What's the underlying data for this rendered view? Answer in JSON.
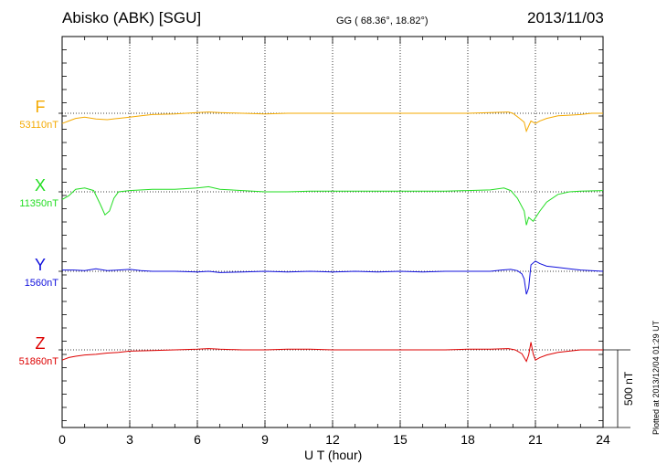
{
  "header": {
    "station": "Abisko (ABK)  [SGU]",
    "coordinates": "GG ( 68.36°,  18.82°)",
    "date": "2013/11/03"
  },
  "footer": {
    "plotted": "Plotted at 2013/12/04 01:29 UT"
  },
  "chart_data": {
    "type": "line",
    "title": "Abisko (ABK)  [SGU]",
    "xlabel": "U T (hour)",
    "xlim": [
      0,
      24
    ],
    "x_ticks": [
      "0",
      "3",
      "6",
      "9",
      "12",
      "15",
      "18",
      "21",
      "24"
    ],
    "grid": "dotted vertical at every 3 hours",
    "scale_bar": "500 nT",
    "series": [
      {
        "name": "F",
        "baseline": "53110nT",
        "color": "#f4a900",
        "x": [
          0,
          0.3,
          0.6,
          1.0,
          1.5,
          2.0,
          2.5,
          3.0,
          3.5,
          4.0,
          5.0,
          6.0,
          6.5,
          7.0,
          8.0,
          9.0,
          10.0,
          11.0,
          12.0,
          13.0,
          14.0,
          15.0,
          16.0,
          17.0,
          18.0,
          19.0,
          19.8,
          20.0,
          20.3,
          20.5,
          20.6,
          20.7,
          20.8,
          21.0,
          21.2,
          21.5,
          22.0,
          22.5,
          23.0,
          23.5,
          24.0
        ],
        "y": [
          -80,
          -60,
          -40,
          -30,
          -45,
          -50,
          -40,
          -30,
          -20,
          -10,
          -5,
          5,
          10,
          5,
          0,
          -5,
          0,
          0,
          0,
          0,
          0,
          0,
          0,
          0,
          0,
          5,
          10,
          0,
          -40,
          -70,
          -140,
          -100,
          -60,
          -80,
          -60,
          -40,
          -20,
          -15,
          -10,
          0,
          0
        ]
      },
      {
        "name": "X",
        "baseline": "11350nT",
        "color": "#22dd22",
        "x": [
          0,
          0.3,
          0.6,
          1.0,
          1.4,
          1.7,
          1.9,
          2.1,
          2.3,
          2.5,
          3.0,
          4.0,
          5.0,
          6.0,
          6.5,
          7.0,
          8.0,
          9.0,
          10.0,
          11.0,
          12.0,
          13.0,
          14.0,
          15.0,
          16.0,
          17.0,
          18.0,
          19.0,
          19.6,
          19.9,
          20.2,
          20.5,
          20.6,
          20.7,
          20.9,
          21.2,
          21.5,
          22.0,
          22.5,
          23.0,
          24.0
        ],
        "y": [
          -60,
          -30,
          20,
          30,
          10,
          -100,
          -180,
          -150,
          -50,
          0,
          10,
          20,
          20,
          30,
          40,
          20,
          10,
          0,
          0,
          5,
          5,
          5,
          5,
          5,
          5,
          5,
          10,
          15,
          30,
          10,
          -50,
          -150,
          -260,
          -200,
          -230,
          -150,
          -80,
          -20,
          0,
          5,
          10
        ]
      },
      {
        "name": "Y",
        "baseline": "1560nT",
        "color": "#1010dd",
        "x": [
          0,
          0.5,
          1.0,
          1.5,
          2.0,
          2.5,
          3.0,
          3.5,
          4.0,
          5.0,
          6.0,
          6.5,
          7.0,
          8.0,
          9.0,
          10.0,
          11.0,
          12.0,
          13.0,
          14.0,
          15.0,
          16.0,
          17.0,
          18.0,
          19.0,
          19.5,
          19.9,
          20.2,
          20.4,
          20.5,
          20.6,
          20.7,
          20.8,
          21.0,
          21.2,
          21.5,
          22.0,
          22.5,
          23.0,
          24.0
        ],
        "y": [
          10,
          10,
          5,
          20,
          5,
          10,
          15,
          5,
          0,
          0,
          -5,
          0,
          -10,
          -5,
          0,
          -5,
          0,
          -5,
          0,
          -5,
          0,
          -5,
          0,
          0,
          0,
          10,
          15,
          5,
          -20,
          -60,
          -180,
          -130,
          50,
          80,
          60,
          40,
          30,
          20,
          10,
          0
        ]
      },
      {
        "name": "Z",
        "baseline": "51860nT",
        "color": "#dd0000",
        "x": [
          0,
          0.3,
          0.6,
          1.0,
          1.5,
          2.0,
          2.5,
          3.0,
          4.0,
          5.0,
          6.0,
          6.5,
          7.0,
          8.0,
          9.0,
          10.0,
          11.0,
          12.0,
          13.0,
          14.0,
          15.0,
          16.0,
          17.0,
          18.0,
          19.0,
          19.8,
          20.1,
          20.4,
          20.6,
          20.7,
          20.8,
          20.9,
          21.0,
          21.2,
          21.5,
          22.0,
          22.5,
          23.0,
          24.0
        ],
        "y": [
          -80,
          -60,
          -50,
          -40,
          -35,
          -25,
          -20,
          -10,
          -5,
          0,
          5,
          10,
          5,
          0,
          0,
          5,
          5,
          0,
          0,
          0,
          0,
          0,
          0,
          5,
          5,
          10,
          0,
          -30,
          -90,
          -40,
          60,
          -30,
          -80,
          -60,
          -40,
          -20,
          -10,
          0,
          0
        ]
      }
    ]
  }
}
